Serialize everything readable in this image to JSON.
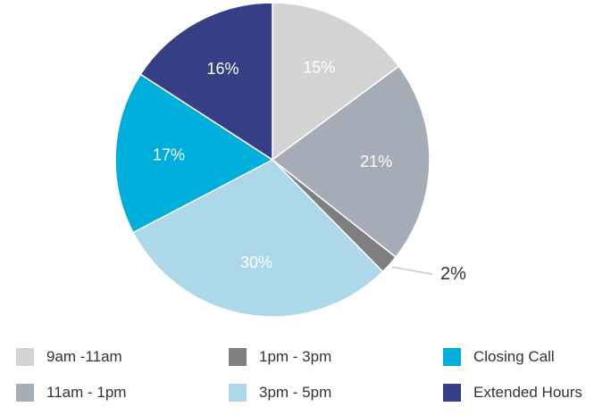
{
  "chart_data": {
    "type": "pie",
    "categories": [
      "9am -11am",
      "11am - 1pm",
      "1pm - 3pm",
      "3pm - 5pm",
      "Closing Call",
      "Extended Hours"
    ],
    "values": [
      15,
      21,
      2,
      30,
      17,
      16
    ],
    "labels": [
      "15%",
      "21%",
      "2%",
      "30%",
      "17%",
      "16%"
    ],
    "colors": [
      "#d3d3d3",
      "#a5acb8",
      "#7f7f7f",
      "#acd8ea",
      "#00aedb",
      "#363f86"
    ],
    "legend_position": "bottom",
    "title": ""
  }
}
